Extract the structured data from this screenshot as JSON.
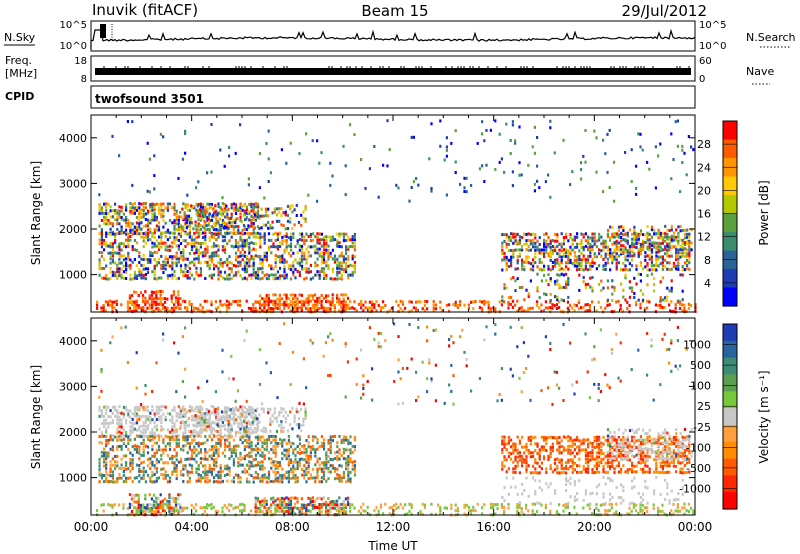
{
  "header": {
    "station": "Inuvik (fitACF)",
    "beam": "Beam 15",
    "date": "29/Jul/2012"
  },
  "top_panels": {
    "nsky_label": "N.Sky",
    "nsearch_label": "N.Search",
    "freq_label_1": "Freq.",
    "freq_label_2": "[MHz]",
    "nave_label": "Nave",
    "cpid_label": "CPID",
    "cpid_value": "twofsound 3501",
    "nsky_left_ticks": [
      "10^5",
      "10^0"
    ],
    "nsky_right_ticks": [
      "10^5",
      "10^0"
    ],
    "freq_left_ticks": [
      "18",
      "8"
    ],
    "nave_right_ticks": [
      "60",
      "0"
    ]
  },
  "chart_data": [
    {
      "type": "heatmap",
      "panel": "power",
      "ylabel": "Slant Range [km]",
      "xlabel": "",
      "colorbar_label": "Power [dB]",
      "xlim": [
        0,
        24
      ],
      "ylim": [
        180,
        4500
      ],
      "y_ticks": [
        1000,
        2000,
        3000,
        4000
      ],
      "colorbar_ticks": [
        "28",
        "24",
        "20",
        "16",
        "12",
        "8",
        "4"
      ],
      "colorbar_colors": [
        "#ff0000",
        "#ff5a00",
        "#ff9600",
        "#ffc800",
        "#b4c800",
        "#5aa03c",
        "#3c8c6e",
        "#2a6496",
        "#1e3cb4",
        "#0000ff"
      ]
    },
    {
      "type": "heatmap",
      "panel": "velocity",
      "ylabel": "Slant Range [km]",
      "xlabel": "Time UT",
      "colorbar_label": "Velocity [m s⁻¹]",
      "xlim": [
        0,
        24
      ],
      "ylim": [
        180,
        4500
      ],
      "y_ticks": [
        1000,
        2000,
        3000,
        4000
      ],
      "x_tick_labels": [
        "00:00",
        "04:00",
        "08:00",
        "12:00",
        "16:00",
        "20:00",
        "00:00"
      ],
      "colorbar_ticks": [
        "1000",
        "500",
        "100",
        "25",
        "-25",
        "-100",
        "-500",
        "-1000"
      ],
      "colorbar_colors": [
        "#1e3cb4",
        "#2a64a0",
        "#3c8c78",
        "#5aa050",
        "#78c83c",
        "#c8c8c8",
        "#ffa03c",
        "#ff8c00",
        "#ff5a00",
        "#ff2800",
        "#ff0000"
      ]
    }
  ]
}
